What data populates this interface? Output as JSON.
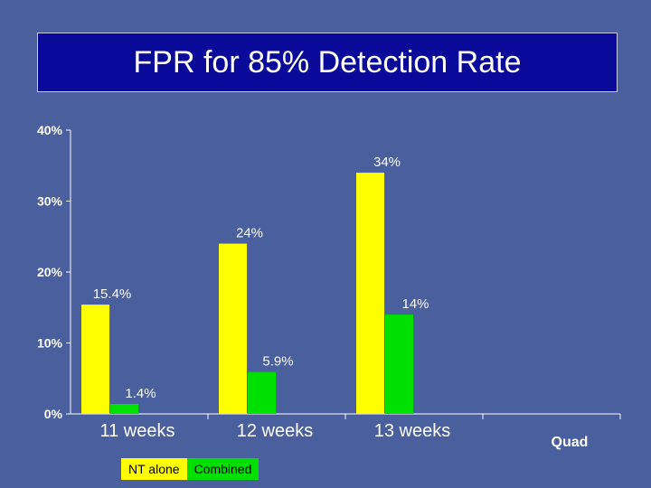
{
  "slide": {
    "title": "FPR for 85% Detection Rate"
  },
  "colors": {
    "background": "#4a5f9e",
    "title_bg": "#0a0a9a",
    "nt_alone": "#ffff00",
    "combined": "#00e000",
    "axis": "#ffffff",
    "text": "#ffffff",
    "legend_text": "#000000"
  },
  "chart_data": {
    "type": "bar",
    "title": "FPR for 85% Detection Rate",
    "categories": [
      "11 weeks",
      "12 weeks",
      "13 weeks",
      "Quad"
    ],
    "series": [
      {
        "name": "NT alone",
        "values": [
          15.4,
          24,
          34,
          null
        ],
        "labels": [
          "15.4%",
          "24%",
          "34%",
          ""
        ]
      },
      {
        "name": "Combined",
        "values": [
          1.4,
          5.9,
          14,
          null
        ],
        "labels": [
          "1.4%",
          "5.9%",
          "14%",
          ""
        ]
      }
    ],
    "ylim": [
      0,
      40
    ],
    "yticks": [
      0,
      10,
      20,
      30,
      40
    ],
    "ytick_labels": [
      "0%",
      "10%",
      "20%",
      "30%",
      "40%"
    ],
    "xlabel": "",
    "ylabel": "",
    "legend": [
      "NT alone",
      "Combined"
    ],
    "legend_position": "bottom-left",
    "grid": false
  }
}
